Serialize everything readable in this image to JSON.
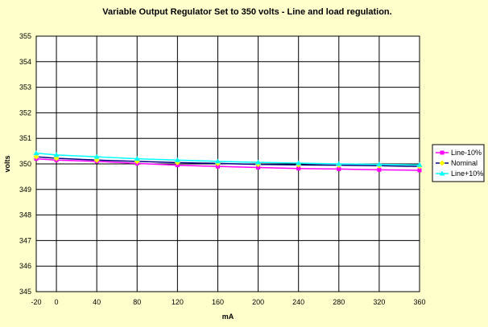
{
  "chart_data": {
    "type": "line",
    "title": "Variable Output Regulator Set to 350 volts - Line and load regulation.",
    "xlabel": "mA",
    "ylabel": "volts",
    "x": [
      -20,
      0,
      40,
      80,
      120,
      160,
      200,
      240,
      280,
      320,
      360
    ],
    "x_ticks": [
      "-20",
      "0",
      "40",
      "80",
      "120",
      "160",
      "200",
      "240",
      "280",
      "320",
      "360"
    ],
    "xlim": [
      -20,
      360
    ],
    "ylim": [
      345,
      355
    ],
    "y_ticks": [
      "345",
      "346",
      "347",
      "348",
      "349",
      "350",
      "351",
      "352",
      "353",
      "354",
      "355"
    ],
    "grid": true,
    "legend_position": "right",
    "series": [
      {
        "name": "Line-10%",
        "color": "#ff00ff",
        "marker": "square",
        "values": [
          350.2,
          350.15,
          350.1,
          350.02,
          349.95,
          349.9,
          349.86,
          349.82,
          349.8,
          349.77,
          349.75
        ]
      },
      {
        "name": "Nominal",
        "color": "#000080",
        "marker": "diamond",
        "values": [
          350.28,
          350.22,
          350.15,
          350.1,
          350.05,
          350.02,
          349.98,
          349.96,
          349.95,
          349.93,
          349.9
        ]
      },
      {
        "name": "Line+10%",
        "color": "#00ffff",
        "marker": "triangle",
        "values": [
          350.42,
          350.35,
          350.28,
          350.2,
          350.15,
          350.1,
          350.06,
          350.03,
          350.0,
          349.98,
          349.96
        ]
      }
    ]
  }
}
